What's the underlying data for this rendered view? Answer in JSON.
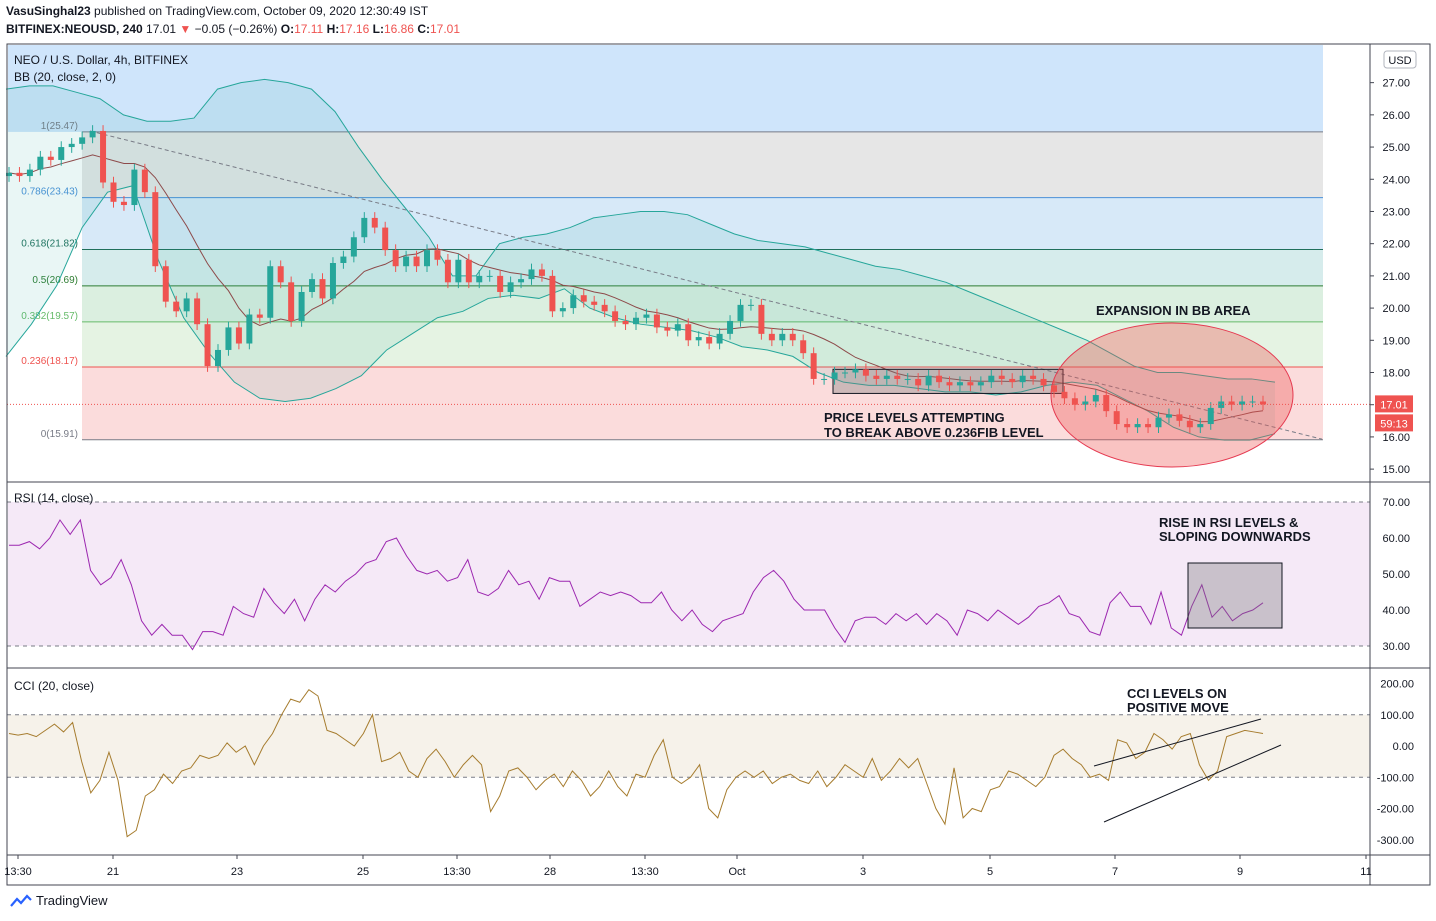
{
  "header": {
    "user": "VasuSinghal23",
    "published": "published on TradingView.com, October 09, 2020 12:30:49 IST",
    "symbol": "BITFINEX:NEOUSD, 240",
    "last": "17.01",
    "change": "−0.05 (−0.26%)",
    "o_label": "O:",
    "o": "17.11",
    "h_label": "H:",
    "h": "17.16",
    "l_label": "L:",
    "l": "16.86",
    "c_label": "C:",
    "c": "17.01"
  },
  "footer": {
    "brand": "TradingView"
  },
  "colors": {
    "up": "#26a69a",
    "down": "#ef5350",
    "bb": "#26a69a",
    "basis": "#8d4a4a",
    "rsi": "#9c27b0",
    "cci": "#a67c2e",
    "fib0": "#f5c4c4",
    "fib236": "#fbdcdc",
    "fib382": "#e5f3e3",
    "fib5": "#dbefe0",
    "fib618": "#d6ecec",
    "fib786": "#d7e9f8",
    "fib1": "#e6e6e6",
    "annot_fill": "#f4a6b2"
  },
  "chart_data": [
    {
      "type": "candlestick",
      "title": "NEO / U.S. Dollar, 4h, BITFINEX",
      "indicator_label": "BB (20, close, 2, 0)",
      "currency": "USD",
      "ylim": [
        14.6,
        28.2
      ],
      "y_ticks": [
        "15.00",
        "16.00",
        "17.00",
        "18.00",
        "19.00",
        "20.00",
        "21.00",
        "22.00",
        "23.00",
        "24.00",
        "25.00",
        "26.00",
        "27.00"
      ],
      "price_badge": "17.01",
      "timer_badge": "59:13",
      "x_ticks": [
        "13:30",
        "21",
        "23",
        "25",
        "13:30",
        "28",
        "13:30",
        "Oct",
        "3",
        "5",
        "7",
        "9",
        "11"
      ],
      "fib_levels": [
        {
          "label": "0(15.91)",
          "value": 15.91
        },
        {
          "label": "0.236(18.17)",
          "value": 18.17
        },
        {
          "label": "0.382(19.57)",
          "value": 19.57
        },
        {
          "label": "0.5(20.69)",
          "value": 20.69
        },
        {
          "label": "0.618(21.82)",
          "value": 21.82
        },
        {
          "label": "0.786(23.43)",
          "value": 23.43
        },
        {
          "label": "1(25.47)",
          "value": 25.47
        }
      ],
      "close": [
        24.2,
        24.1,
        24.3,
        24.7,
        24.6,
        25.0,
        25.1,
        25.3,
        25.5,
        23.9,
        23.3,
        23.2,
        24.3,
        23.6,
        21.3,
        20.2,
        19.9,
        20.3,
        19.5,
        18.2,
        18.7,
        19.4,
        18.9,
        19.8,
        19.7,
        21.3,
        20.8,
        19.6,
        20.5,
        20.9,
        20.3,
        21.4,
        21.6,
        22.2,
        22.8,
        22.5,
        21.8,
        21.3,
        21.6,
        21.3,
        21.8,
        21.5,
        20.8,
        21.5,
        20.8,
        21.0,
        21.0,
        20.5,
        20.8,
        20.9,
        21.2,
        21.0,
        19.9,
        20.0,
        20.4,
        20.2,
        20.1,
        19.9,
        19.6,
        19.5,
        19.7,
        19.8,
        19.4,
        19.3,
        19.5,
        19.0,
        19.1,
        18.9,
        19.2,
        19.6,
        20.1,
        20.1,
        19.2,
        19.0,
        19.2,
        19.0,
        18.6,
        17.8,
        17.8,
        18.0,
        18.0,
        18.1,
        17.9,
        17.8,
        17.9,
        17.8,
        17.8,
        17.6,
        17.9,
        17.7,
        17.6,
        17.7,
        17.6,
        17.7,
        17.9,
        17.8,
        17.7,
        17.9,
        17.8,
        17.6,
        17.4,
        17.2,
        17.0,
        17.1,
        17.3,
        16.8,
        16.4,
        16.3,
        16.4,
        16.3,
        16.6,
        16.7,
        16.5,
        16.3,
        16.4,
        16.9,
        17.1,
        17.0,
        17.1,
        17.1,
        17.01
      ],
      "bb_upper": [
        26.8,
        26.9,
        26.9,
        26.7,
        26.5,
        26.0,
        25.8,
        25.8,
        25.9,
        26.8,
        27.0,
        27.1,
        27.0,
        26.8,
        26.1,
        25.0,
        24.0,
        23.1,
        22.2,
        21.0,
        21.0,
        22.0,
        22.2,
        22.3,
        22.5,
        22.8,
        22.9,
        23.0,
        23.0,
        22.9,
        22.6,
        22.3,
        22.1,
        22.0,
        21.9,
        21.7,
        21.5,
        21.3,
        21.2,
        21.0,
        20.8,
        20.5,
        20.2,
        19.9,
        19.6,
        19.3,
        19.0,
        18.6,
        18.2,
        18.0,
        18.0,
        17.9,
        17.8,
        17.8,
        17.7
      ],
      "bb_lower": [
        18.5,
        19.5,
        20.7,
        22.5,
        23.6,
        23.8,
        21.5,
        19.7,
        18.6,
        17.7,
        17.2,
        17.1,
        17.2,
        17.5,
        17.9,
        18.7,
        19.2,
        19.7,
        19.9,
        20.3,
        20.4,
        20.3,
        20.6,
        20.0,
        19.7,
        19.5,
        19.4,
        19.3,
        19.1,
        18.8,
        18.7,
        18.5,
        18.0,
        17.7,
        17.6,
        17.6,
        17.5,
        17.4,
        17.4,
        17.3,
        17.4,
        17.6,
        17.7,
        17.6,
        17.2,
        16.8,
        16.3,
        16.0,
        15.9,
        15.9,
        16.1
      ],
      "rsi": [
        58,
        58,
        59,
        57,
        60,
        65,
        61,
        65,
        51,
        47,
        49,
        54,
        47,
        37,
        33,
        36,
        33,
        33,
        29,
        34,
        34,
        33,
        41,
        39,
        38,
        46,
        42,
        39,
        43,
        37,
        43,
        47,
        45,
        48,
        50,
        53,
        54,
        59,
        60,
        55,
        51,
        50,
        51,
        48,
        49,
        54,
        45,
        44,
        46,
        51,
        47,
        48,
        43,
        49,
        48,
        48,
        41,
        43,
        45,
        44,
        45,
        44,
        42,
        42,
        45,
        40,
        37,
        40,
        36,
        34,
        37,
        38,
        39,
        45,
        49,
        51,
        48,
        43,
        40,
        40,
        40,
        35,
        31,
        37,
        38,
        38,
        36,
        39,
        37,
        39,
        36,
        39,
        37,
        33,
        40,
        39,
        37,
        40,
        38,
        36,
        38,
        41,
        42,
        44,
        39,
        38,
        34,
        33,
        42,
        45,
        41,
        41,
        36,
        45,
        35,
        33,
        41,
        47,
        38,
        41,
        37,
        39,
        40,
        42
      ],
      "rsi_levels": [
        70,
        30
      ],
      "rsi_ticks": [
        "30.00",
        "40.00",
        "50.00",
        "60.00",
        "70.00"
      ],
      "cci": [
        40,
        35,
        40,
        30,
        50,
        70,
        45,
        75,
        -50,
        -150,
        -110,
        -20,
        -110,
        -290,
        -270,
        -160,
        -140,
        -90,
        -120,
        -80,
        -70,
        -30,
        -40,
        -30,
        10,
        -20,
        0,
        -60,
        0,
        40,
        100,
        150,
        140,
        180,
        160,
        50,
        40,
        20,
        0,
        40,
        100,
        -50,
        -40,
        -20,
        -80,
        -100,
        -40,
        -10,
        -50,
        -100,
        -60,
        -30,
        -60,
        -210,
        -160,
        -80,
        -70,
        -100,
        -140,
        -110,
        -90,
        -130,
        -80,
        -110,
        -160,
        -130,
        -80,
        -130,
        -160,
        -90,
        -100,
        -30,
        20,
        -100,
        -120,
        -100,
        -60,
        -200,
        -230,
        -140,
        -100,
        -80,
        -100,
        -80,
        -120,
        -100,
        -90,
        -110,
        -120,
        -80,
        -130,
        -100,
        -60,
        -80,
        -100,
        -40,
        -110,
        -80,
        -40,
        -70,
        -40,
        -120,
        -200,
        -250,
        -70,
        -230,
        -200,
        -210,
        -140,
        -130,
        -80,
        -90,
        -110,
        -130,
        -100,
        -30,
        -10,
        -40,
        -60,
        -100,
        -90,
        -110,
        20,
        10,
        -40,
        -20,
        40,
        20,
        -10,
        30,
        40,
        -60,
        -110,
        -80,
        30,
        40,
        50,
        45,
        40
      ],
      "cci_levels": [
        100,
        -100
      ],
      "cci_ticks": [
        "200.00",
        "100.00",
        "0.00",
        "-100.00",
        "-200.00",
        "-300.00"
      ],
      "rsi_label": "RSI (14, close)",
      "cci_label": "CCI (20, close)",
      "annotations": [
        {
          "text": "EXPANSION IN BB AREA"
        },
        {
          "text_lines": [
            "PRICE LEVELS ATTEMPTING",
            "TO BREAK ABOVE 0.236FIB LEVEL"
          ]
        },
        {
          "text_lines": [
            "RISE IN RSI LEVELS &",
            "SLOPING DOWNWARDS"
          ]
        },
        {
          "text_lines": [
            "CCI LEVELS ON",
            "POSITIVE MOVE"
          ]
        }
      ]
    }
  ]
}
